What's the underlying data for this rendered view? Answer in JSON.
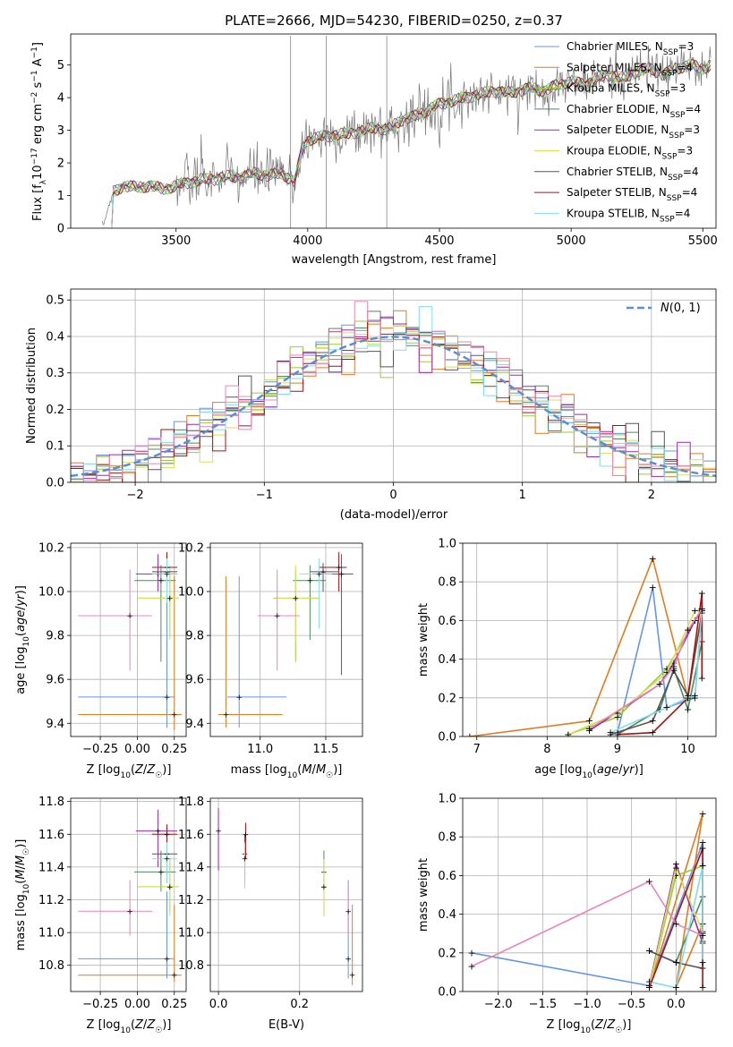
{
  "colors": [
    "#6495ed",
    "#e07b20",
    "#9acd32",
    "#4e8a5a",
    "#9a2ab0",
    "#d4e157",
    "#555555",
    "#aa1111",
    "#80deea",
    "#ec84b8"
  ],
  "chart_data": [
    {
      "id": "spectrum",
      "type": "line",
      "title": "PLATE=2666, MJD=54230, FIBERID=0250, z=0.37",
      "xlabel": "wavelength [Angstrom, rest frame]",
      "ylabel": "Flux [f_λ 10^-17 erg cm^-2 s^-1 A^-1]",
      "xlim": [
        3100,
        5550
      ],
      "ylim": [
        0,
        5.95
      ],
      "xticks": [
        3500,
        4000,
        4500,
        5000,
        5500
      ],
      "yticks": [
        0,
        1,
        2,
        3,
        4,
        5
      ],
      "legend": "top-right",
      "series_names": [
        "Chabrier MILES, N_SSP=3",
        "Salpeter MILES, N_SSP=4",
        "Kroupa MILES, N_SSP=3",
        "Chabrier ELODIE, N_SSP=4",
        "Salpeter ELODIE, N_SSP=3",
        "Kroupa ELODIE, N_SSP=3",
        "Chabrier STELIB, N_SSP=4",
        "Salpeter STELIB, N_SSP=4",
        "Kroupa STELIB, N_SSP=4"
      ],
      "series_colors": [
        "#6495ed",
        "#e07b20",
        "#9acd32",
        "#4e8a5a",
        "#9a2ab0",
        "#d4e157",
        "#555555",
        "#aa1111",
        "#80deea"
      ],
      "data_x": [
        3220,
        3260,
        3300,
        3350,
        3400,
        3450,
        3500,
        3550,
        3600,
        3650,
        3700,
        3750,
        3800,
        3850,
        3900,
        3950,
        3980,
        4000,
        4050,
        4100,
        4150,
        4200,
        4250,
        4300,
        4350,
        4400,
        4450,
        4500,
        4550,
        4600,
        4650,
        4700,
        4750,
        4800,
        4850,
        4900,
        4950,
        5000,
        5050,
        5100,
        5150,
        5200,
        5250,
        5300,
        5350,
        5400,
        5450,
        5500,
        5530
      ],
      "data_y": [
        0.0,
        1.1,
        1.3,
        1.25,
        1.3,
        1.2,
        1.3,
        1.4,
        1.5,
        1.5,
        1.6,
        1.55,
        1.7,
        1.6,
        1.7,
        1.4,
        2.5,
        2.7,
        2.8,
        2.85,
        2.9,
        2.95,
        3.1,
        3.0,
        3.3,
        3.4,
        3.6,
        3.8,
        3.9,
        4.0,
        4.1,
        4.2,
        4.15,
        4.2,
        4.3,
        4.2,
        4.4,
        4.5,
        4.4,
        4.6,
        4.7,
        4.6,
        4.8,
        4.9,
        4.7,
        4.9,
        5.0,
        4.9,
        5.0
      ]
    },
    {
      "id": "residuals",
      "type": "bar",
      "xlabel": "(data-model)/error",
      "ylabel": "Normed distribution",
      "xlim": [
        -2.5,
        2.5
      ],
      "ylim": [
        0,
        0.53
      ],
      "xticks": [
        -2,
        -1,
        0,
        1,
        2
      ],
      "yticks": [
        0.0,
        0.1,
        0.2,
        0.3,
        0.4,
        0.5
      ],
      "legend_label": "N(0,1)",
      "legend": "top-right",
      "bin_width": 0.1
    },
    {
      "id": "age-vs-Z",
      "type": "scatter",
      "xlabel": "Z [log10(Z/Z☉)]",
      "ylabel": "age [log10(age/yr)]",
      "xlim": [
        -0.45,
        0.33
      ],
      "ylim": [
        9.34,
        10.22
      ],
      "xticks": [
        -0.25,
        0.0,
        0.25
      ],
      "yticks": [
        9.4,
        9.6,
        9.8,
        10.0,
        10.2
      ],
      "points": [
        {
          "x": 0.2,
          "y": 9.52,
          "xlo": -0.4,
          "xhi": 0.25,
          "ylo": 9.38,
          "yhi": 10.1
        },
        {
          "x": 0.25,
          "y": 9.44,
          "xlo": -0.4,
          "xhi": 0.3,
          "ylo": 9.37,
          "yhi": 10.07
        },
        {
          "x": 0.22,
          "y": 9.97,
          "xlo": 0.0,
          "xhi": 0.28,
          "ylo": 9.8,
          "yhi": 10.1
        },
        {
          "x": 0.16,
          "y": 10.05,
          "xlo": -0.02,
          "xhi": 0.26,
          "ylo": 9.68,
          "yhi": 10.12
        },
        {
          "x": 0.14,
          "y": 10.08,
          "xlo": -0.01,
          "xhi": 0.27,
          "ylo": 10.0,
          "yhi": 10.17
        },
        {
          "x": 0.22,
          "y": 9.97,
          "xlo": 0.0,
          "xhi": 0.28,
          "ylo": 9.78,
          "yhi": 10.12
        },
        {
          "x": 0.2,
          "y": 10.09,
          "xlo": 0.1,
          "xhi": 0.27,
          "ylo": 10.0,
          "yhi": 10.13
        },
        {
          "x": 0.2,
          "y": 10.11,
          "xlo": 0.1,
          "xhi": 0.27,
          "ylo": 10.0,
          "yhi": 10.18
        },
        {
          "x": 0.2,
          "y": 10.08,
          "xlo": 0.1,
          "xhi": 0.27,
          "ylo": 9.95,
          "yhi": 10.15
        },
        {
          "x": -0.05,
          "y": 9.89,
          "xlo": -0.4,
          "xhi": 0.1,
          "ylo": 9.64,
          "yhi": 10.1
        }
      ]
    },
    {
      "id": "age-vs-mass",
      "type": "scatter",
      "xlabel": "mass [log10(M/M☉)]",
      "ylabel": "",
      "xlim": [
        10.62,
        11.78
      ],
      "ylim": [
        9.34,
        10.22
      ],
      "xticks": [
        11.0,
        11.5
      ],
      "yticks": [
        9.4,
        9.6,
        9.8,
        10.0,
        10.2
      ],
      "points": [
        {
          "x": 10.84,
          "y": 9.52,
          "xlo": 10.75,
          "xhi": 11.2,
          "ylo": 9.38,
          "yhi": 10.07
        },
        {
          "x": 10.74,
          "y": 9.44,
          "xlo": 10.68,
          "xhi": 11.17,
          "ylo": 9.38,
          "yhi": 10.07
        },
        {
          "x": 11.27,
          "y": 9.97,
          "xlo": 11.1,
          "xhi": 11.45,
          "ylo": 9.68,
          "yhi": 10.1
        },
        {
          "x": 11.38,
          "y": 10.05,
          "xlo": 11.25,
          "xhi": 11.5,
          "ylo": 9.78,
          "yhi": 10.12
        },
        {
          "x": 11.62,
          "y": 10.08,
          "xlo": 11.4,
          "xhi": 11.71,
          "ylo": 9.62,
          "yhi": 10.17
        },
        {
          "x": 11.27,
          "y": 9.97,
          "xlo": 11.12,
          "xhi": 11.45,
          "ylo": 9.78,
          "yhi": 10.12
        },
        {
          "x": 11.48,
          "y": 10.09,
          "xlo": 11.38,
          "xhi": 11.6,
          "ylo": 10.0,
          "yhi": 10.13
        },
        {
          "x": 11.6,
          "y": 10.11,
          "xlo": 11.45,
          "xhi": 11.66,
          "ylo": 10.0,
          "yhi": 10.18
        },
        {
          "x": 11.45,
          "y": 10.08,
          "xlo": 11.3,
          "xhi": 11.55,
          "ylo": 9.83,
          "yhi": 10.15
        },
        {
          "x": 11.13,
          "y": 9.89,
          "xlo": 10.98,
          "xhi": 11.3,
          "ylo": 9.64,
          "yhi": 10.1
        }
      ]
    },
    {
      "id": "massweight-vs-age",
      "type": "line",
      "xlabel": "age [log10(age/yr)]",
      "ylabel": "mass weight",
      "xlim": [
        6.8,
        10.4
      ],
      "ylim": [
        0,
        1.0
      ],
      "xticks": [
        7,
        8,
        9,
        10
      ],
      "yticks": [
        0.0,
        0.2,
        0.4,
        0.6,
        0.8,
        1.0
      ],
      "series": [
        {
          "x": [
            9.0,
            9.5,
            9.7,
            10.1,
            10.2
          ],
          "y": [
            0.02,
            0.77,
            0.15,
            0.2,
            0.65
          ]
        },
        {
          "x": [
            6.9,
            8.6,
            9.5,
            10.0,
            10.2
          ],
          "y": [
            0.0,
            0.08,
            0.92,
            0.2,
            0.65
          ]
        },
        {
          "x": [
            8.3,
            9.0,
            9.7,
            10.1,
            10.2
          ],
          "y": [
            0.01,
            0.1,
            0.35,
            0.6,
            0.65
          ]
        },
        {
          "x": [
            9.0,
            9.6,
            9.8,
            10.0,
            10.2
          ],
          "y": [
            0.01,
            0.14,
            0.35,
            0.14,
            0.49
          ]
        },
        {
          "x": [
            8.6,
            9.6,
            9.8,
            10.1,
            10.2
          ],
          "y": [
            0.03,
            0.27,
            0.38,
            0.6,
            0.66
          ]
        },
        {
          "x": [
            8.3,
            9.0,
            9.7,
            10.1,
            10.2
          ],
          "y": [
            0.01,
            0.12,
            0.33,
            0.65,
            0.66
          ]
        },
        {
          "x": [
            8.9,
            9.5,
            9.8,
            10.0,
            10.2
          ],
          "y": [
            0.01,
            0.08,
            0.34,
            0.21,
            0.64
          ]
        },
        {
          "x": [
            9.0,
            9.5,
            10.0,
            10.2,
            10.2
          ],
          "y": [
            0.01,
            0.02,
            0.2,
            0.74,
            0.3
          ]
        },
        {
          "x": [
            8.9,
            9.7,
            10.0,
            10.1,
            10.2
          ],
          "y": [
            0.02,
            0.15,
            0.2,
            0.21,
            0.65
          ]
        },
        {
          "x": [
            8.6,
            9.6,
            9.8,
            10.0,
            10.2
          ],
          "y": [
            0.04,
            0.27,
            0.36,
            0.55,
            0.66
          ]
        }
      ]
    },
    {
      "id": "mass-vs-Z",
      "type": "scatter",
      "xlabel": "Z [log10(Z/Z☉)]",
      "ylabel": "mass [log10(M/M☉)]",
      "xlim": [
        -0.45,
        0.33
      ],
      "ylim": [
        10.64,
        11.82
      ],
      "xticks": [
        -0.25,
        0.0,
        0.25
      ],
      "yticks": [
        10.8,
        11.0,
        11.2,
        11.4,
        11.6,
        11.8
      ],
      "points": [
        {
          "x": 0.2,
          "y": 10.84,
          "xlo": -0.4,
          "xhi": 0.25,
          "ylo": 10.72,
          "yhi": 11.25
        },
        {
          "x": 0.25,
          "y": 10.74,
          "xlo": -0.4,
          "xhi": 0.3,
          "ylo": 10.7,
          "yhi": 11.17
        },
        {
          "x": 0.22,
          "y": 11.28,
          "xlo": 0.0,
          "xhi": 0.28,
          "ylo": 11.12,
          "yhi": 11.45
        },
        {
          "x": 0.16,
          "y": 11.37,
          "xlo": -0.02,
          "xhi": 0.26,
          "ylo": 11.25,
          "yhi": 11.5
        },
        {
          "x": 0.14,
          "y": 11.62,
          "xlo": -0.01,
          "xhi": 0.27,
          "ylo": 11.4,
          "yhi": 11.75
        },
        {
          "x": 0.22,
          "y": 11.28,
          "xlo": 0.0,
          "xhi": 0.28,
          "ylo": 11.1,
          "yhi": 11.45
        },
        {
          "x": 0.2,
          "y": 11.48,
          "xlo": 0.1,
          "xhi": 0.27,
          "ylo": 11.38,
          "yhi": 11.6
        },
        {
          "x": 0.2,
          "y": 11.6,
          "xlo": 0.1,
          "xhi": 0.27,
          "ylo": 11.45,
          "yhi": 11.66
        },
        {
          "x": 0.2,
          "y": 11.45,
          "xlo": 0.1,
          "xhi": 0.27,
          "ylo": 11.3,
          "yhi": 11.55
        },
        {
          "x": -0.05,
          "y": 11.13,
          "xlo": -0.4,
          "xhi": 0.1,
          "ylo": 10.98,
          "yhi": 11.32
        }
      ]
    },
    {
      "id": "mass-vs-ebv",
      "type": "scatter",
      "xlabel": "E(B-V)",
      "ylabel": "",
      "xlim": [
        -0.02,
        0.355
      ],
      "ylim": [
        10.64,
        11.82
      ],
      "xticks": [
        0.0,
        0.2
      ],
      "yticks": [
        10.8,
        11.0,
        11.2,
        11.4,
        11.6,
        11.8
      ],
      "points": [
        {
          "x": 0.32,
          "y": 10.84,
          "ylo": 10.72,
          "yhi": 11.32
        },
        {
          "x": 0.33,
          "y": 10.74,
          "ylo": 10.68,
          "yhi": 11.17
        },
        {
          "x": 0.26,
          "y": 11.28,
          "ylo": 11.1,
          "yhi": 11.46
        },
        {
          "x": 0.26,
          "y": 11.37,
          "ylo": 11.25,
          "yhi": 11.5
        },
        {
          "x": 0.0,
          "y": 11.62,
          "ylo": 11.38,
          "yhi": 11.76
        },
        {
          "x": 0.26,
          "y": 11.28,
          "ylo": 11.1,
          "yhi": 11.45
        },
        {
          "x": 0.065,
          "y": 11.48,
          "ylo": 11.3,
          "yhi": 11.6
        },
        {
          "x": 0.067,
          "y": 11.6,
          "ylo": 11.45,
          "yhi": 11.67
        },
        {
          "x": 0.065,
          "y": 11.45,
          "ylo": 11.27,
          "yhi": 11.55
        },
        {
          "x": 0.32,
          "y": 11.13,
          "ylo": 10.98,
          "yhi": 11.3
        }
      ]
    },
    {
      "id": "massweight-vs-Z",
      "type": "line",
      "xlabel": "Z [log10(Z/Z☉)]",
      "ylabel": "mass weight",
      "xlim": [
        -2.4,
        0.45
      ],
      "ylim": [
        0,
        1.0
      ],
      "xticks": [
        -2.0,
        -1.5,
        -1.0,
        -0.5,
        0.0
      ],
      "yticks": [
        0.0,
        0.2,
        0.4,
        0.6,
        0.8,
        1.0
      ],
      "series": [
        {
          "x": [
            -2.3,
            -0.3,
            0.3,
            0.3
          ],
          "y": [
            0.2,
            0.03,
            0.77,
            0.65
          ]
        },
        {
          "x": [
            -0.3,
            0.3,
            0.0,
            0.3
          ],
          "y": [
            0.02,
            0.92,
            0.02,
            0.35
          ]
        },
        {
          "x": [
            -0.3,
            0.0,
            0.3,
            0.3
          ],
          "y": [
            0.02,
            0.6,
            0.65,
            0.35
          ]
        },
        {
          "x": [
            -0.3,
            0.0,
            0.3,
            0.3
          ],
          "y": [
            0.21,
            0.15,
            0.49,
            0.3
          ]
        },
        {
          "x": [
            -0.3,
            0.0,
            0.3,
            0.3
          ],
          "y": [
            0.03,
            0.66,
            0.25,
            0.35
          ]
        },
        {
          "x": [
            -0.3,
            0.0,
            0.3,
            0.3
          ],
          "y": [
            0.02,
            0.64,
            0.31,
            0.26
          ]
        },
        {
          "x": [
            -0.3,
            0.0,
            0.3,
            0.3
          ],
          "y": [
            0.21,
            0.15,
            0.12,
            0.3
          ]
        },
        {
          "x": [
            -0.3,
            0.3,
            0.3,
            0.3
          ],
          "y": [
            0.02,
            0.74,
            0.02,
            0.74
          ]
        },
        {
          "x": [
            -0.3,
            0.0,
            0.3,
            0.3
          ],
          "y": [
            0.05,
            0.02,
            0.65,
            0.15
          ]
        },
        {
          "x": [
            -2.3,
            -0.3,
            0.0,
            0.3
          ],
          "y": [
            0.13,
            0.57,
            0.35,
            0.29
          ]
        }
      ]
    }
  ]
}
